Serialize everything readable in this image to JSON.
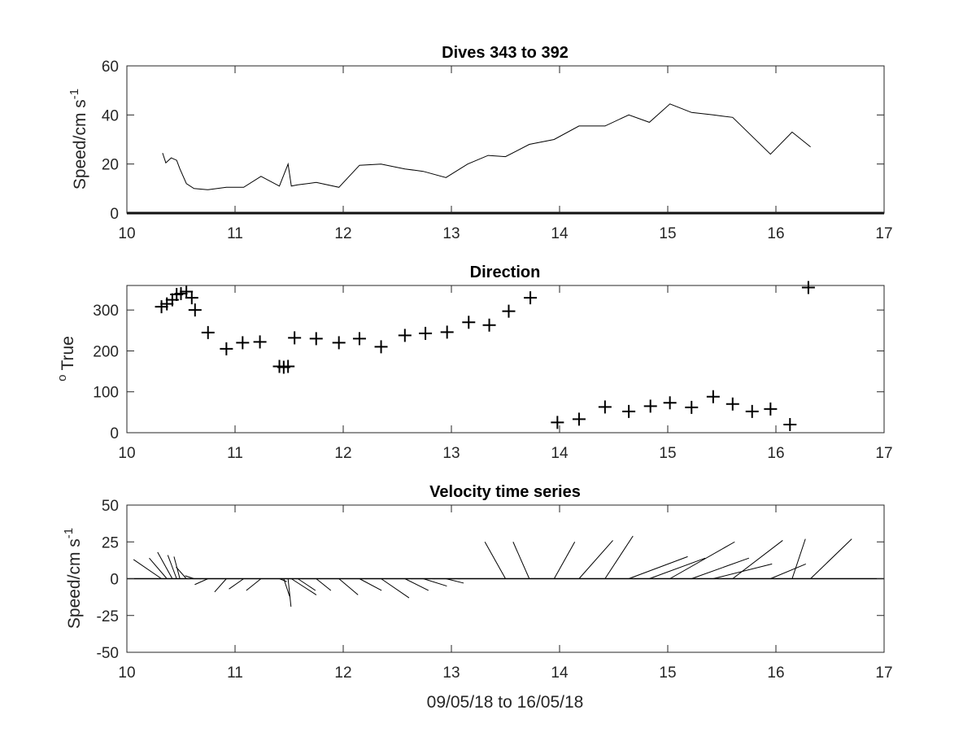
{
  "chart_data": [
    {
      "type": "line",
      "title": "Dives 343 to 392",
      "xlabel": "",
      "ylabel": "Speed/cm s",
      "ylabel_sup": "-1",
      "xlim": [
        10,
        17
      ],
      "ylim": [
        0,
        60
      ],
      "xticks": [
        "10",
        "11",
        "12",
        "13",
        "14",
        "15",
        "16",
        "17"
      ],
      "yticks": [
        "0",
        "20",
        "40",
        "60"
      ],
      "baseline": 0,
      "x": [
        10.33,
        10.36,
        10.41,
        10.46,
        10.49,
        10.55,
        10.62,
        10.75,
        10.92,
        11.08,
        11.24,
        11.41,
        11.49,
        11.52,
        11.58,
        11.75,
        11.96,
        12.15,
        12.35,
        12.57,
        12.74,
        12.95,
        13.15,
        13.34,
        13.5,
        13.72,
        13.95,
        14.18,
        14.42,
        14.64,
        14.83,
        15.02,
        15.22,
        15.42,
        15.6,
        15.95,
        16.15,
        16.32
      ],
      "y": [
        24.5,
        20.5,
        22.5,
        21.5,
        18,
        12,
        10,
        9.5,
        10.5,
        10.5,
        15,
        11,
        20,
        11,
        11.5,
        12.5,
        10.5,
        19.5,
        20,
        18,
        17,
        14.5,
        20,
        23.5,
        23,
        28,
        30,
        35.5,
        35.5,
        40,
        37,
        44.5,
        41,
        40,
        39,
        24,
        33,
        27
      ]
    },
    {
      "type": "scatter",
      "title": "Direction",
      "xlabel": "",
      "ylabel": "True",
      "ylabel_sup": "o",
      "xlim": [
        10,
        17
      ],
      "ylim": [
        0,
        360
      ],
      "xticks": [
        "10",
        "11",
        "12",
        "13",
        "14",
        "15",
        "16",
        "17"
      ],
      "yticks": [
        "0",
        "100",
        "200",
        "300"
      ],
      "marker": "+",
      "x": [
        10.32,
        10.37,
        10.42,
        10.46,
        10.5,
        10.55,
        10.6,
        10.63,
        10.75,
        10.92,
        11.07,
        11.23,
        11.41,
        11.45,
        11.49,
        11.55,
        11.75,
        11.96,
        12.15,
        12.35,
        12.57,
        12.76,
        12.96,
        13.16,
        13.35,
        13.53,
        13.73,
        13.98,
        14.18,
        14.42,
        14.64,
        14.84,
        15.02,
        15.22,
        15.42,
        15.6,
        15.78,
        15.95,
        16.13,
        16.3
      ],
      "y": [
        308,
        315,
        325,
        338,
        340,
        345,
        330,
        300,
        245,
        205,
        220,
        222,
        162,
        160,
        162,
        232,
        230,
        220,
        230,
        210,
        238,
        243,
        246,
        270,
        263,
        297,
        330,
        25,
        33,
        63,
        52,
        65,
        73,
        62,
        88,
        70,
        52,
        58,
        20,
        355
      ]
    },
    {
      "type": "line",
      "subtype": "stick",
      "title": "Velocity time series",
      "xlabel": "09/05/18 to 16/05/18",
      "ylabel": "Speed/cm s",
      "ylabel_sup": "-1",
      "xlim": [
        10,
        17
      ],
      "ylim": [
        -50,
        50
      ],
      "xticks": [
        "10",
        "11",
        "12",
        "13",
        "14",
        "15",
        "16",
        "17"
      ],
      "yticks": [
        "-50",
        "-25",
        "0",
        "25",
        "50"
      ],
      "baseline": 0,
      "x": [
        10.32,
        10.37,
        10.42,
        10.46,
        10.49,
        10.55,
        10.62,
        10.75,
        10.92,
        11.08,
        11.24,
        11.41,
        11.45,
        11.49,
        11.52,
        11.58,
        11.75,
        11.96,
        12.15,
        12.35,
        12.57,
        12.74,
        12.95,
        13.15,
        13.34,
        13.5,
        13.72,
        13.95,
        14.18,
        14.42,
        14.64,
        14.83,
        15.02,
        15.22,
        15.42,
        15.6,
        15.95,
        16.15,
        16.32
      ],
      "u": [
        -19,
        -12,
        -10,
        -6,
        -4,
        -7,
        -6,
        -9,
        -8,
        -10,
        -10,
        5,
        4,
        2,
        17,
        12,
        10,
        13,
        15,
        19,
        16,
        16,
        12,
        20,
        30,
        -14,
        -11,
        14,
        23,
        19,
        40,
        38,
        44,
        39,
        40,
        34,
        24,
        9,
        28
      ],
      "v": [
        13,
        14,
        18,
        16,
        15,
        8,
        2,
        -4,
        -9,
        -7,
        -8,
        -2,
        -12,
        -19,
        -11,
        -8,
        -8,
        -11,
        -8,
        -13,
        -8,
        -5,
        -3,
        0,
        0,
        25,
        25,
        25,
        26,
        29,
        15,
        14,
        25,
        14,
        10,
        26,
        10,
        27,
        27
      ]
    }
  ]
}
